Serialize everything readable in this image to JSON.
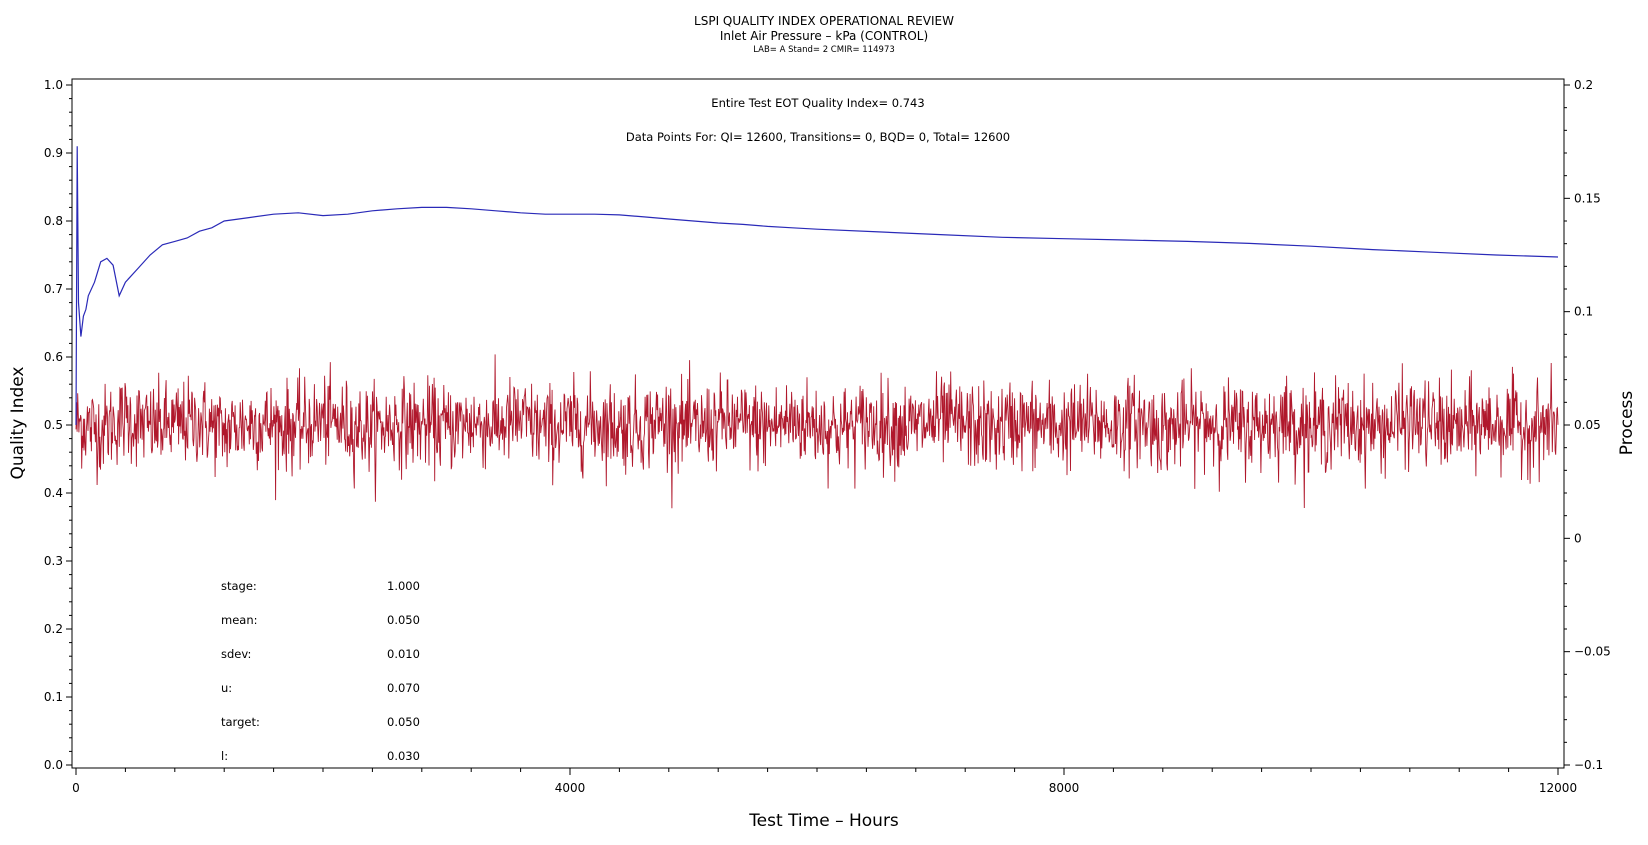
{
  "header": {
    "title": "LSPI QUALITY INDEX OPERATIONAL REVIEW",
    "subtitle": "Inlet Air Pressure – kPa (CONTROL)",
    "meta": "LAB= A Stand= 2 CMIR= 114973"
  },
  "annotations": {
    "eot": "Entire Test EOT Quality Index=   0.743",
    "counts": "Data Points For: QI= 12600, Transitions=      0, BQD=      0, Total= 12600"
  },
  "stats": [
    {
      "label": "stage:",
      "value": "1.000"
    },
    {
      "label": "mean:",
      "value": "0.050"
    },
    {
      "label": "sdev:",
      "value": "0.010"
    },
    {
      "label": "u:",
      "value": "0.070"
    },
    {
      "label": "target:",
      "value": "0.050"
    },
    {
      "label": "l:",
      "value": "0.030"
    }
  ],
  "chart_data": {
    "type": "line",
    "title": "LSPI QUALITY INDEX OPERATIONAL REVIEW",
    "xlabel": "Test Time – Hours",
    "ylabel": "Quality Index",
    "y2label": "Process",
    "xlim": [
      0,
      12000
    ],
    "ylim": [
      0.0,
      1.0
    ],
    "y2lim": [
      -0.1,
      0.2
    ],
    "xticks": [
      "0",
      "4000",
      "8000",
      "12000"
    ],
    "yticks": [
      "0.0",
      "0.1",
      "0.2",
      "0.3",
      "0.4",
      "0.5",
      "0.6",
      "0.7",
      "0.8",
      "0.9",
      "1.0"
    ],
    "y2ticks": [
      "−0.1",
      "−0.05",
      "0",
      "0.05",
      "0.1",
      "0.15",
      "0.2"
    ],
    "grid": false,
    "series": [
      {
        "axis": "left",
        "color": "#2a2ab8",
        "x": [
          0,
          10,
          20,
          40,
          60,
          80,
          100,
          150,
          200,
          250,
          300,
          350,
          400,
          500,
          600,
          700,
          800,
          900,
          1000,
          1100,
          1200,
          1400,
          1600,
          1800,
          2000,
          2200,
          2400,
          2600,
          2800,
          3000,
          3200,
          3400,
          3600,
          3800,
          4000,
          4200,
          4400,
          4600,
          4800,
          5000,
          5200,
          5400,
          5600,
          5800,
          6000,
          6500,
          7000,
          7500,
          8000,
          8500,
          9000,
          9500,
          10000,
          10500,
          11000,
          11500,
          12000
        ],
        "y": [
          0.5,
          0.91,
          0.68,
          0.63,
          0.66,
          0.67,
          0.69,
          0.71,
          0.74,
          0.745,
          0.735,
          0.69,
          0.71,
          0.73,
          0.75,
          0.765,
          0.77,
          0.775,
          0.785,
          0.79,
          0.8,
          0.805,
          0.81,
          0.812,
          0.808,
          0.81,
          0.815,
          0.818,
          0.82,
          0.82,
          0.818,
          0.815,
          0.812,
          0.81,
          0.81,
          0.81,
          0.809,
          0.806,
          0.803,
          0.8,
          0.797,
          0.795,
          0.792,
          0.79,
          0.788,
          0.784,
          0.78,
          0.776,
          0.774,
          0.772,
          0.77,
          0.767,
          0.763,
          0.758,
          0.754,
          0.75,
          0.747
        ]
      },
      {
        "axis": "right",
        "color": "#b0182c",
        "name": "",
        "summary": {
          "n": 12600,
          "mean": 0.05,
          "sdev": 0.01,
          "min": 0.013,
          "max": 0.087
        },
        "x": [
          0,
          200,
          400,
          600,
          800,
          1000,
          1200,
          1400,
          1600,
          1800,
          2000,
          2200,
          2400,
          2600,
          2800,
          3000,
          3200,
          3400,
          3600,
          3800,
          4000,
          4200,
          4400,
          4600,
          4800,
          5000,
          5200,
          5400,
          5600,
          5800,
          6000,
          6200,
          6400,
          6600,
          6800,
          7000,
          7200,
          7400,
          7600,
          7800,
          8000,
          8200,
          8400,
          8600,
          8800,
          9000,
          9200,
          9400,
          9600,
          9800,
          10000,
          10200,
          10400,
          10600,
          10800,
          11000,
          11200,
          11400,
          11600,
          11800,
          12000
        ],
        "y": [
          0.051,
          0.048,
          0.053,
          0.049,
          0.05,
          0.052,
          0.047,
          0.051,
          0.05,
          0.049,
          0.052,
          0.05,
          0.048,
          0.051,
          0.05,
          0.049,
          0.051,
          0.05,
          0.052,
          0.048,
          0.05,
          0.051,
          0.049,
          0.05,
          0.052,
          0.048,
          0.051,
          0.05,
          0.049,
          0.052,
          0.05,
          0.048,
          0.051,
          0.05,
          0.049,
          0.052,
          0.05,
          0.048,
          0.051,
          0.05,
          0.049,
          0.051,
          0.05,
          0.052,
          0.048,
          0.05,
          0.051,
          0.049,
          0.05,
          0.052,
          0.048,
          0.051,
          0.05,
          0.049,
          0.052,
          0.05,
          0.048,
          0.051,
          0.05,
          0.049,
          0.05
        ]
      }
    ]
  }
}
